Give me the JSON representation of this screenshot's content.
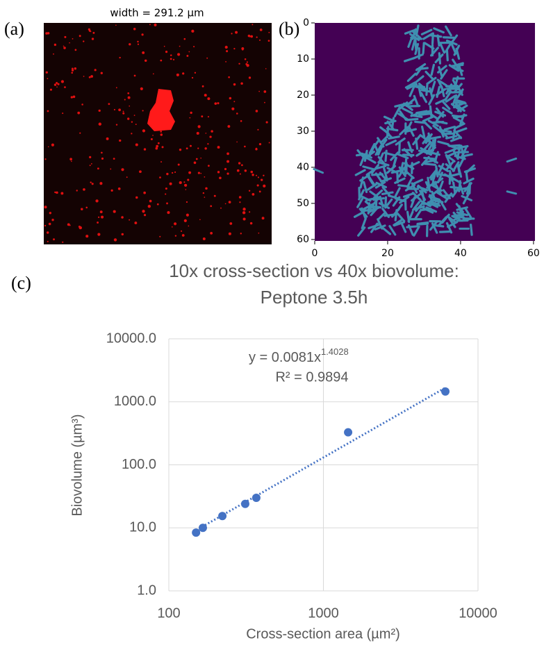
{
  "chart_data": [
    {
      "type": "image",
      "panel_label": "(a)",
      "title": "width = 291.2 μm"
    },
    {
      "type": "image",
      "panel_label": "(b)",
      "xlim": [
        0,
        60.4
      ],
      "ylim": [
        0,
        60.4
      ],
      "y_inverted": true,
      "xticks": [
        0,
        20,
        40,
        60
      ],
      "yticks": [
        0,
        10,
        20,
        30,
        40,
        50,
        60
      ]
    },
    {
      "type": "scatter",
      "panel_label": "(c)",
      "title": [
        "10x cross-section vs 40x biovolume:",
        "Peptone 3.5h"
      ],
      "xlabel": "Cross-section area (µm²)",
      "ylabel": "Biovolume (µm³)",
      "xscale": "log",
      "yscale": "log",
      "xlim": [
        100,
        10000
      ],
      "ylim": [
        1,
        10000
      ],
      "xticks": [
        100,
        1000,
        10000
      ],
      "yticks": [
        {
          "value": 1,
          "label": "1.0"
        },
        {
          "value": 10,
          "label": "10.0"
        },
        {
          "value": 100,
          "label": "100.0"
        },
        {
          "value": 1000,
          "label": "1000.0"
        },
        {
          "value": 10000,
          "label": "10000.0"
        }
      ],
      "grid": true,
      "series": [
        {
          "color": "#4472c4",
          "x": [
            150,
            166,
            222,
            312,
            368,
            1445,
            6150
          ],
          "values": [
            8.4,
            10,
            15.4,
            24,
            30,
            328,
            1460
          ]
        }
      ],
      "trendline": {
        "a": 0.0081,
        "b": 1.4028,
        "style": "dotted",
        "label": "y = 0.0081x",
        "exponent_label": "1.4028",
        "r2_label": "R² = 0.9894"
      }
    }
  ]
}
